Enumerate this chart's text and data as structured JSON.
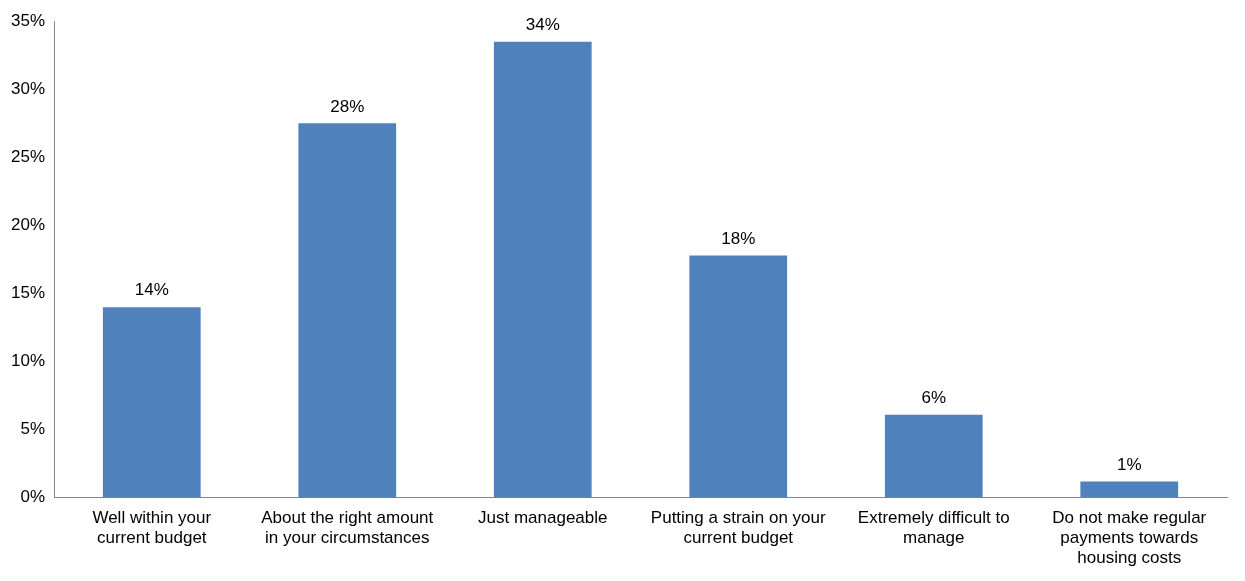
{
  "chart_data": {
    "type": "bar",
    "categories": [
      "Well within your current budget",
      "About the right amount in your circumstances",
      "Just manageable",
      "Putting a strain on your current budget",
      "Extremely difficult to manage",
      "Do not make regular payments towards housing costs"
    ],
    "values": [
      14,
      27.5,
      33.5,
      17.8,
      6.1,
      1.2
    ],
    "value_labels": [
      "14%",
      "28%",
      "34%",
      "18%",
      "6%",
      "1%"
    ],
    "color": "#4f81bd",
    "ylim": [
      0,
      35
    ],
    "yticks": [
      {
        "value": 0,
        "label": "0%"
      },
      {
        "value": 5,
        "label": "5%"
      },
      {
        "value": 10,
        "label": "10%"
      },
      {
        "value": 15,
        "label": "15%"
      },
      {
        "value": 20,
        "label": "20%"
      },
      {
        "value": 25,
        "label": "25%"
      },
      {
        "value": 30,
        "label": "30%"
      },
      {
        "value": 35,
        "label": "35%"
      }
    ],
    "grid": false,
    "legend": false
  }
}
